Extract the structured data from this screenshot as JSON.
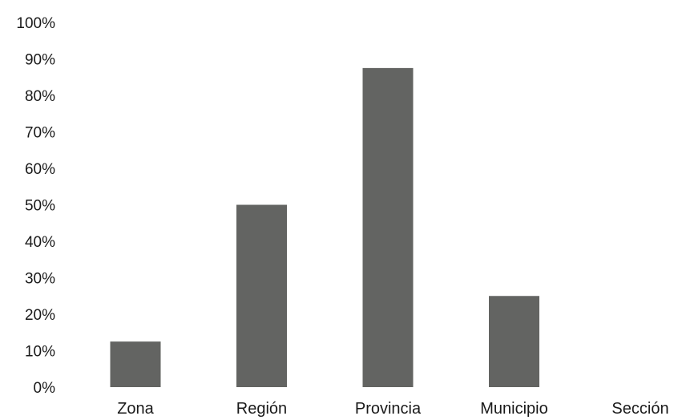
{
  "chart_data": {
    "type": "bar",
    "title": "",
    "xlabel": "",
    "ylabel": "",
    "categories": [
      "Zona",
      "Región",
      "Provincia",
      "Municipio",
      "Sección"
    ],
    "values": [
      12.5,
      50,
      87.5,
      25,
      0
    ],
    "ylim": [
      0,
      100
    ],
    "yticks": [
      "0%",
      "10%",
      "20%",
      "30%",
      "40%",
      "50%",
      "60%",
      "70%",
      "80%",
      "90%",
      "100%"
    ],
    "grid": false,
    "legend": "none",
    "bar_color": "#636462"
  }
}
